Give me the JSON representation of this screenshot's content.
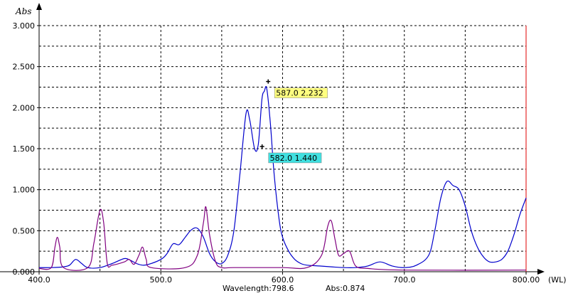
{
  "chart_data": {
    "type": "line",
    "y_unit_label": "Abs",
    "x_unit_label": "(WL)",
    "x_ticks": [
      "400.0",
      "500.0",
      "600.0",
      "700.0",
      "800.00"
    ],
    "y_ticks": [
      "0.000",
      "0.500",
      "1.000",
      "1.500",
      "2.000",
      "2.500",
      "3.000"
    ],
    "xlim": [
      400,
      800
    ],
    "ylim": [
      0,
      3.0
    ],
    "grid": true,
    "colors": {
      "blue": "#0000cc",
      "purple": "#800080",
      "red_line": "#e00000",
      "label_yellow": "#ffff80",
      "label_cyan": "#40e0e0"
    },
    "series": [
      {
        "color": "#0000cc",
        "points": [
          [
            400,
            0.05
          ],
          [
            410,
            0.05
          ],
          [
            420,
            0.06
          ],
          [
            425,
            0.08
          ],
          [
            430,
            0.15
          ],
          [
            435,
            0.1
          ],
          [
            440,
            0.05
          ],
          [
            450,
            0.05
          ],
          [
            460,
            0.1
          ],
          [
            470,
            0.16
          ],
          [
            475,
            0.14
          ],
          [
            480,
            0.1
          ],
          [
            485,
            0.08
          ],
          [
            490,
            0.09
          ],
          [
            500,
            0.15
          ],
          [
            505,
            0.22
          ],
          [
            510,
            0.34
          ],
          [
            515,
            0.33
          ],
          [
            520,
            0.42
          ],
          [
            525,
            0.51
          ],
          [
            530,
            0.53
          ],
          [
            535,
            0.42
          ],
          [
            540,
            0.22
          ],
          [
            545,
            0.12
          ],
          [
            550,
            0.1
          ],
          [
            555,
            0.2
          ],
          [
            560,
            0.5
          ],
          [
            565,
            1.2
          ],
          [
            570,
            1.93
          ],
          [
            573,
            1.85
          ],
          [
            577,
            1.5
          ],
          [
            580,
            1.55
          ],
          [
            583,
            2.1
          ],
          [
            585,
            2.2
          ],
          [
            587,
            2.232
          ],
          [
            590,
            1.8
          ],
          [
            593,
            1.2
          ],
          [
            597,
            0.65
          ],
          [
            600,
            0.42
          ],
          [
            605,
            0.25
          ],
          [
            610,
            0.15
          ],
          [
            615,
            0.1
          ],
          [
            620,
            0.08
          ],
          [
            630,
            0.07
          ],
          [
            640,
            0.06
          ],
          [
            650,
            0.05
          ],
          [
            660,
            0.05
          ],
          [
            670,
            0.07
          ],
          [
            680,
            0.12
          ],
          [
            690,
            0.07
          ],
          [
            700,
            0.05
          ],
          [
            710,
            0.08
          ],
          [
            720,
            0.2
          ],
          [
            725,
            0.5
          ],
          [
            730,
            0.9
          ],
          [
            735,
            1.1
          ],
          [
            740,
            1.05
          ],
          [
            745,
            1.0
          ],
          [
            750,
            0.8
          ],
          [
            755,
            0.5
          ],
          [
            760,
            0.3
          ],
          [
            765,
            0.18
          ],
          [
            770,
            0.12
          ],
          [
            775,
            0.12
          ],
          [
            780,
            0.15
          ],
          [
            785,
            0.25
          ],
          [
            790,
            0.45
          ],
          [
            795,
            0.7
          ],
          [
            800,
            0.9
          ]
        ]
      },
      {
        "color": "#800080",
        "points": [
          [
            400,
            0.04
          ],
          [
            410,
            0.05
          ],
          [
            413,
            0.3
          ],
          [
            415,
            0.42
          ],
          [
            417,
            0.3
          ],
          [
            420,
            0.05
          ],
          [
            440,
            0.05
          ],
          [
            445,
            0.35
          ],
          [
            450,
            0.75
          ],
          [
            453,
            0.6
          ],
          [
            456,
            0.1
          ],
          [
            460,
            0.08
          ],
          [
            470,
            0.12
          ],
          [
            474,
            0.15
          ],
          [
            478,
            0.09
          ],
          [
            482,
            0.2
          ],
          [
            485,
            0.3
          ],
          [
            488,
            0.15
          ],
          [
            492,
            0.05
          ],
          [
            520,
            0.05
          ],
          [
            530,
            0.2
          ],
          [
            535,
            0.6
          ],
          [
            537,
            0.79
          ],
          [
            540,
            0.45
          ],
          [
            545,
            0.12
          ],
          [
            550,
            0.05
          ],
          [
            560,
            0.05
          ],
          [
            600,
            0.05
          ],
          [
            620,
            0.05
          ],
          [
            632,
            0.2
          ],
          [
            637,
            0.55
          ],
          [
            640,
            0.62
          ],
          [
            643,
            0.4
          ],
          [
            646,
            0.2
          ],
          [
            650,
            0.22
          ],
          [
            655,
            0.25
          ],
          [
            660,
            0.07
          ],
          [
            670,
            0.04
          ],
          [
            700,
            0.02
          ],
          [
            800,
            0.02
          ]
        ]
      }
    ],
    "cursors": [
      {
        "x": 587.0,
        "y": 2.232,
        "label": "587.0 2.232",
        "bg": "#ffff80"
      },
      {
        "x": 582.0,
        "y": 1.44,
        "label": "582.0 1.440",
        "bg": "#40e0e0"
      }
    ],
    "marker_line_x": 800,
    "status": {
      "wavelength": "Wavelength:798.6",
      "abs": "Abs:0.874"
    }
  }
}
